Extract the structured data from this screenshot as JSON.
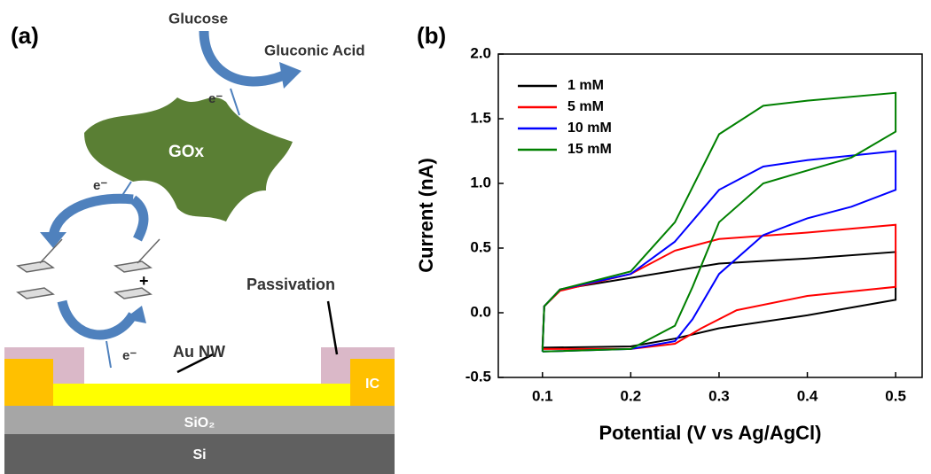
{
  "diagram": {
    "panel_label": "(a)",
    "glucose": "Glucose",
    "gluconic_acid": "Gluconic Acid",
    "electron_top": "e⁻",
    "enzyme": "GOx",
    "electron_mid": "e⁻",
    "ferrocenium_charge": "+",
    "electron_bottom": "e⁻",
    "passivation": "Passivation",
    "nanowire": "Au NW",
    "contact": "IC",
    "oxide": "SiO₂",
    "substrate": "Si"
  },
  "chart_data": {
    "type": "line",
    "panel_label": "(b)",
    "x_label": "Potential (V vs Ag/AgCl)",
    "y_label": "Current (nA)",
    "xlim": [
      0.05,
      0.53
    ],
    "ylim": [
      -0.5,
      2.0
    ],
    "xticks": [
      0.1,
      0.2,
      0.3,
      0.4,
      0.5
    ],
    "yticks": [
      -0.5,
      {
        "value": 0,
        "label": "0.0"
      },
      0.5,
      {
        "value": 1,
        "label": "1.0"
      },
      1.5,
      {
        "value": 2,
        "label": "2.0"
      }
    ],
    "legend": "upper left",
    "series": [
      {
        "name": "1 mM",
        "color": "#000000",
        "x": [
          0.1,
          0.102,
          0.12,
          0.2,
          0.3,
          0.4,
          0.5,
          0.5,
          0.4,
          0.3,
          0.25,
          0.2,
          0.1
        ],
        "values": [
          -0.27,
          0.05,
          0.18,
          0.27,
          0.38,
          0.42,
          0.47,
          0.1,
          -0.02,
          -0.12,
          -0.2,
          -0.26,
          -0.27
        ]
      },
      {
        "name": "5 mM",
        "color": "#ff0000",
        "x": [
          0.1,
          0.102,
          0.12,
          0.2,
          0.25,
          0.3,
          0.4,
          0.5,
          0.5,
          0.4,
          0.32,
          0.28,
          0.25,
          0.2,
          0.1
        ],
        "values": [
          -0.28,
          0.05,
          0.17,
          0.3,
          0.48,
          0.57,
          0.62,
          0.68,
          0.2,
          0.13,
          0.02,
          -0.12,
          -0.24,
          -0.28,
          -0.28
        ]
      },
      {
        "name": "10 mM",
        "color": "#0000ff",
        "x": [
          0.1,
          0.102,
          0.12,
          0.2,
          0.25,
          0.3,
          0.35,
          0.4,
          0.5,
          0.5,
          0.45,
          0.4,
          0.35,
          0.3,
          0.27,
          0.25,
          0.2,
          0.1
        ],
        "values": [
          -0.3,
          0.05,
          0.18,
          0.3,
          0.55,
          0.95,
          1.13,
          1.18,
          1.25,
          0.95,
          0.82,
          0.73,
          0.6,
          0.3,
          -0.05,
          -0.22,
          -0.28,
          -0.3
        ]
      },
      {
        "name": "15 mM",
        "color": "#008000",
        "x": [
          0.1,
          0.102,
          0.12,
          0.2,
          0.25,
          0.3,
          0.35,
          0.4,
          0.5,
          0.5,
          0.45,
          0.4,
          0.35,
          0.3,
          0.27,
          0.25,
          0.2,
          0.1
        ],
        "values": [
          -0.3,
          0.05,
          0.18,
          0.32,
          0.7,
          1.38,
          1.6,
          1.64,
          1.7,
          1.4,
          1.2,
          1.1,
          1.0,
          0.7,
          0.2,
          -0.1,
          -0.28,
          -0.3
        ]
      }
    ]
  }
}
